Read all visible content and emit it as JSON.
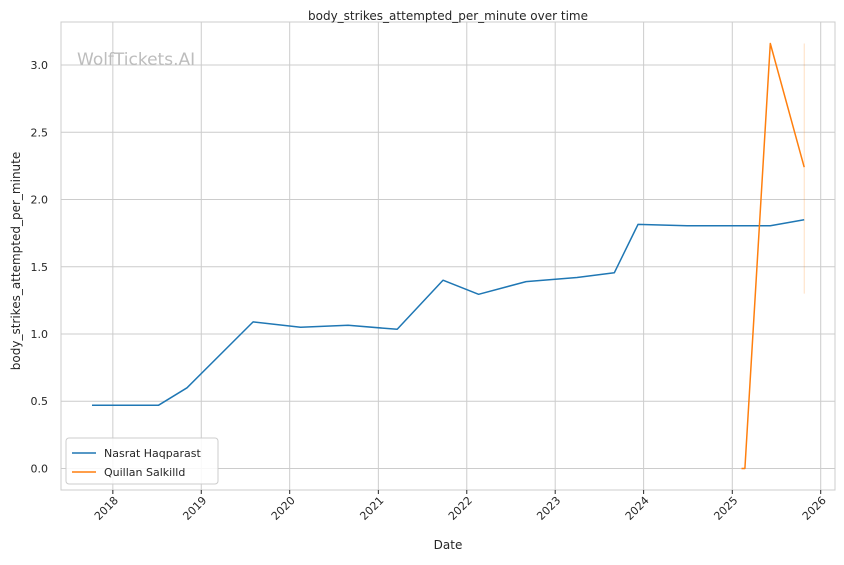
{
  "chart_data": {
    "type": "line",
    "title": "body_strikes_attempted_per_minute over time",
    "xlabel": "Date",
    "ylabel": "body_strikes_attempted_per_minute",
    "watermark": "WolfTickets.AI",
    "xlim": [
      "2017-06-01",
      "2026-03-01"
    ],
    "ylim": [
      -0.16,
      3.32
    ],
    "x_ticks": [
      "2018-01-01",
      "2019-01-01",
      "2020-01-01",
      "2021-01-01",
      "2022-01-01",
      "2023-01-01",
      "2024-01-01",
      "2025-01-01",
      "2026-01-01"
    ],
    "x_tick_labels": [
      "2018",
      "2019",
      "2020",
      "2021",
      "2022",
      "2023",
      "2024",
      "2025",
      "2026"
    ],
    "y_ticks": [
      0.0,
      0.5,
      1.0,
      1.5,
      2.0,
      2.5,
      3.0
    ],
    "y_tick_labels": [
      "0.0",
      "0.5",
      "1.0",
      "1.5",
      "2.0",
      "2.5",
      "3.0"
    ],
    "grid": true,
    "legend_position": "lower-left",
    "series": [
      {
        "name": "Nasrat Haqparast",
        "color": "#1f77b4",
        "x": [
          "2017-10-07",
          "2018-01-20",
          "2018-07-08",
          "2018-11-03",
          "2019-08-03",
          "2020-02-15",
          "2020-08-29",
          "2021-03-20",
          "2021-09-25",
          "2022-02-19",
          "2022-09-03",
          "2023-04-01",
          "2023-09-02",
          "2023-12-09",
          "2024-06-29",
          "2025-06-07",
          "2025-10-25"
        ],
        "y": [
          0.47,
          0.47,
          0.47,
          0.6,
          1.09,
          1.05,
          1.065,
          1.035,
          1.4,
          1.295,
          1.39,
          1.42,
          1.455,
          1.815,
          1.805,
          1.805,
          1.85
        ]
      },
      {
        "name": "Quillan Salkilld",
        "color": "#ff7f0e",
        "x": [
          "2025-02-08",
          "2025-02-22",
          "2025-06-07",
          "2025-10-25"
        ],
        "y": [
          0.0,
          0.0,
          3.16,
          2.24
        ]
      }
    ],
    "annotations": [
      {
        "x": "2025-10-25",
        "y_low": 1.3,
        "y_high": 3.16,
        "color": "#ff7f0e",
        "style": "faint vertical range"
      }
    ]
  }
}
